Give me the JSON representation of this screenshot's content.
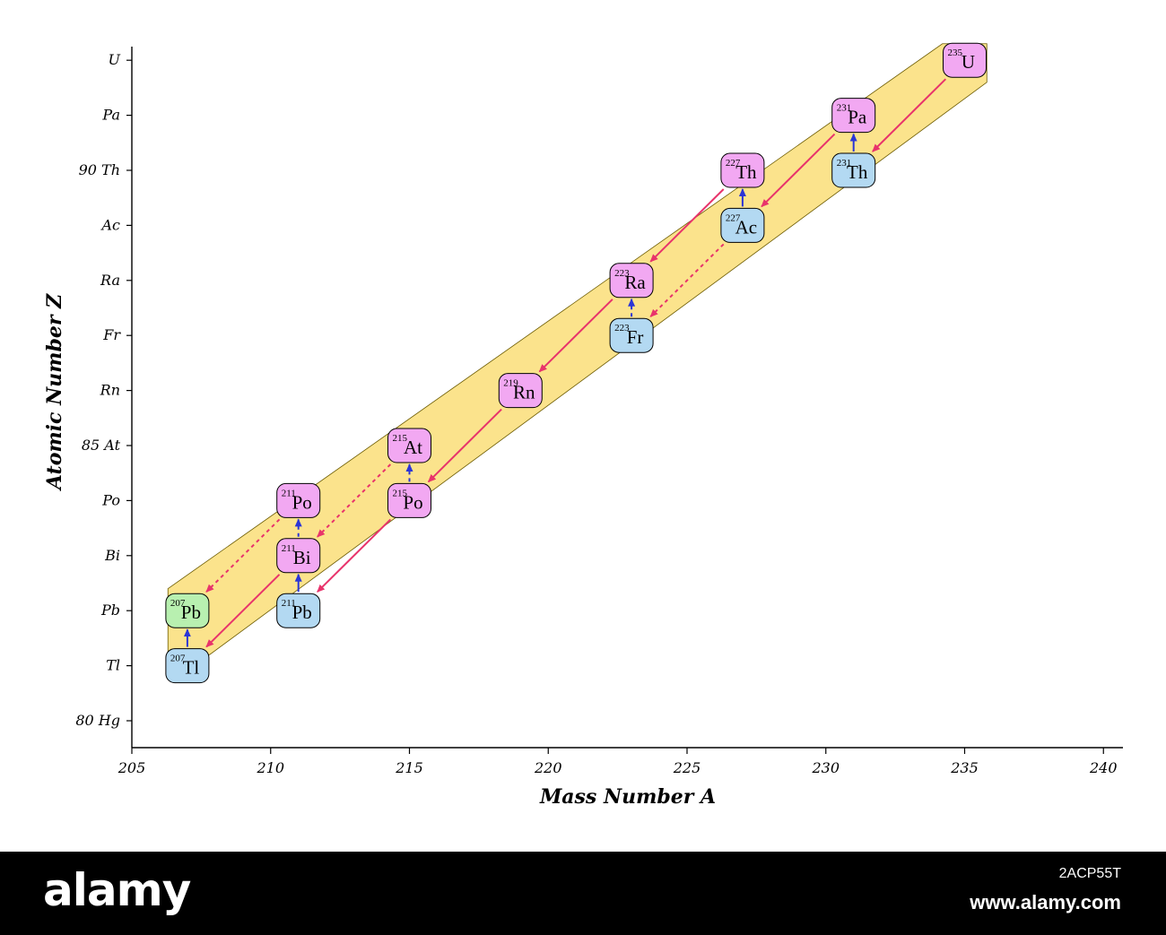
{
  "axes": {
    "x_label": "Mass Number A",
    "y_label": "Atomic Number Z",
    "x_ticks": [
      "205",
      "210",
      "215",
      "220",
      "225",
      "230",
      "235",
      "240"
    ],
    "y_ticks": [
      {
        "z": 92,
        "label": "U"
      },
      {
        "z": 91,
        "label": "Pa"
      },
      {
        "z": 90,
        "label": "90  Th"
      },
      {
        "z": 89,
        "label": "Ac"
      },
      {
        "z": 88,
        "label": "Ra"
      },
      {
        "z": 87,
        "label": "Fr"
      },
      {
        "z": 86,
        "label": "Rn"
      },
      {
        "z": 85,
        "label": "85  At"
      },
      {
        "z": 84,
        "label": "Po"
      },
      {
        "z": 83,
        "label": "Bi"
      },
      {
        "z": 82,
        "label": "Pb"
      },
      {
        "z": 81,
        "label": "Tl"
      },
      {
        "z": 80,
        "label": "80  Hg"
      }
    ]
  },
  "colors": {
    "alpha_node": "#f2a8f2",
    "beta_node": "#b3d9f2",
    "stable_node": "#b8f0b0",
    "band": "#fbe38c",
    "alpha_arrow": "#e8336b",
    "beta_arrow": "#2b35d6",
    "axis": "#000000"
  },
  "nuclides": [
    {
      "id": "U235",
      "symbol": "U",
      "mass": "235",
      "A": 235,
      "Z": 92,
      "kind": "alpha"
    },
    {
      "id": "Pa231",
      "symbol": "Pa",
      "mass": "231",
      "A": 231,
      "Z": 91,
      "kind": "alpha"
    },
    {
      "id": "Th231",
      "symbol": "Th",
      "mass": "231",
      "A": 231,
      "Z": 90,
      "kind": "beta"
    },
    {
      "id": "Th227",
      "symbol": "Th",
      "mass": "227",
      "A": 227,
      "Z": 90,
      "kind": "alpha"
    },
    {
      "id": "Ac227",
      "symbol": "Ac",
      "mass": "227",
      "A": 227,
      "Z": 89,
      "kind": "beta"
    },
    {
      "id": "Ra223",
      "symbol": "Ra",
      "mass": "223",
      "A": 223,
      "Z": 88,
      "kind": "alpha"
    },
    {
      "id": "Fr223",
      "symbol": "Fr",
      "mass": "223",
      "A": 223,
      "Z": 87,
      "kind": "beta"
    },
    {
      "id": "Rn219",
      "symbol": "Rn",
      "mass": "219",
      "A": 219,
      "Z": 86,
      "kind": "alpha"
    },
    {
      "id": "At215",
      "symbol": "At",
      "mass": "215",
      "A": 215,
      "Z": 85,
      "kind": "alpha"
    },
    {
      "id": "Po215",
      "symbol": "Po",
      "mass": "215",
      "A": 215,
      "Z": 84,
      "kind": "alpha"
    },
    {
      "id": "Po211",
      "symbol": "Po",
      "mass": "211",
      "A": 211,
      "Z": 84,
      "kind": "alpha"
    },
    {
      "id": "Bi211",
      "symbol": "Bi",
      "mass": "211",
      "A": 211,
      "Z": 83,
      "kind": "alpha"
    },
    {
      "id": "Pb211",
      "symbol": "Pb",
      "mass": "211",
      "A": 211,
      "Z": 82,
      "kind": "beta"
    },
    {
      "id": "Pb207",
      "symbol": "Pb",
      "mass": "207",
      "A": 207,
      "Z": 82,
      "kind": "stable"
    },
    {
      "id": "Tl207",
      "symbol": "Tl",
      "mass": "207",
      "A": 207,
      "Z": 81,
      "kind": "beta"
    }
  ],
  "decays": [
    {
      "from": "U235",
      "to": "Th231",
      "type": "alpha",
      "minor": false
    },
    {
      "from": "Th231",
      "to": "Pa231",
      "type": "beta",
      "minor": false
    },
    {
      "from": "Pa231",
      "to": "Ac227",
      "type": "alpha",
      "minor": false
    },
    {
      "from": "Ac227",
      "to": "Th227",
      "type": "beta",
      "minor": false
    },
    {
      "from": "Th227",
      "to": "Ra223",
      "type": "alpha",
      "minor": false
    },
    {
      "from": "Ac227",
      "to": "Fr223",
      "type": "alpha",
      "minor": true
    },
    {
      "from": "Fr223",
      "to": "Ra223",
      "type": "beta",
      "minor": true
    },
    {
      "from": "Ra223",
      "to": "Rn219",
      "type": "alpha",
      "minor": false
    },
    {
      "from": "Rn219",
      "to": "Po215",
      "type": "alpha",
      "minor": false
    },
    {
      "from": "Po215",
      "to": "At215",
      "type": "beta",
      "minor": true
    },
    {
      "from": "At215",
      "to": "Bi211",
      "type": "alpha",
      "minor": true
    },
    {
      "from": "Po215",
      "to": "Pb211",
      "type": "alpha",
      "minor": false
    },
    {
      "from": "Pb211",
      "to": "Bi211",
      "type": "beta",
      "minor": false
    },
    {
      "from": "Bi211",
      "to": "Po211",
      "type": "beta",
      "minor": true
    },
    {
      "from": "Po211",
      "to": "Pb207",
      "type": "alpha",
      "minor": true
    },
    {
      "from": "Bi211",
      "to": "Tl207",
      "type": "alpha",
      "minor": false
    },
    {
      "from": "Tl207",
      "to": "Pb207",
      "type": "beta",
      "minor": false
    }
  ],
  "footer": {
    "brand": "alamy",
    "image_code": "2ACP55T",
    "site": "www.alamy.com"
  }
}
